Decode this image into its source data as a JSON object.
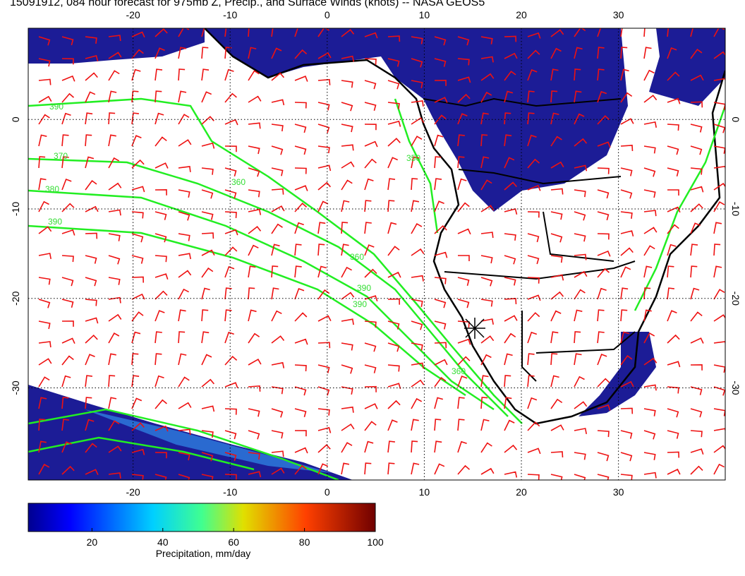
{
  "title": "15091912, 084 hour forecast for 975mb Z, Precip., and Surface Winds (knots) -- NASA GEOS5",
  "map": {
    "lonlim": [
      -30.8,
      41
    ],
    "latlim": [
      -40.3,
      10.2
    ],
    "lon_ticks": [
      -20,
      -10,
      0,
      10,
      20,
      30
    ],
    "lat_ticks": [
      0,
      -10,
      -20,
      -30
    ]
  },
  "colorbar": {
    "label": "Precipitation, mm/day",
    "lim": [
      2,
      100
    ],
    "ticks": [
      20,
      40,
      60,
      80,
      100
    ]
  },
  "contour_labels": [
    "390",
    "370",
    "380",
    "390",
    "360",
    "350",
    "360",
    "390",
    "390",
    "360"
  ]
}
